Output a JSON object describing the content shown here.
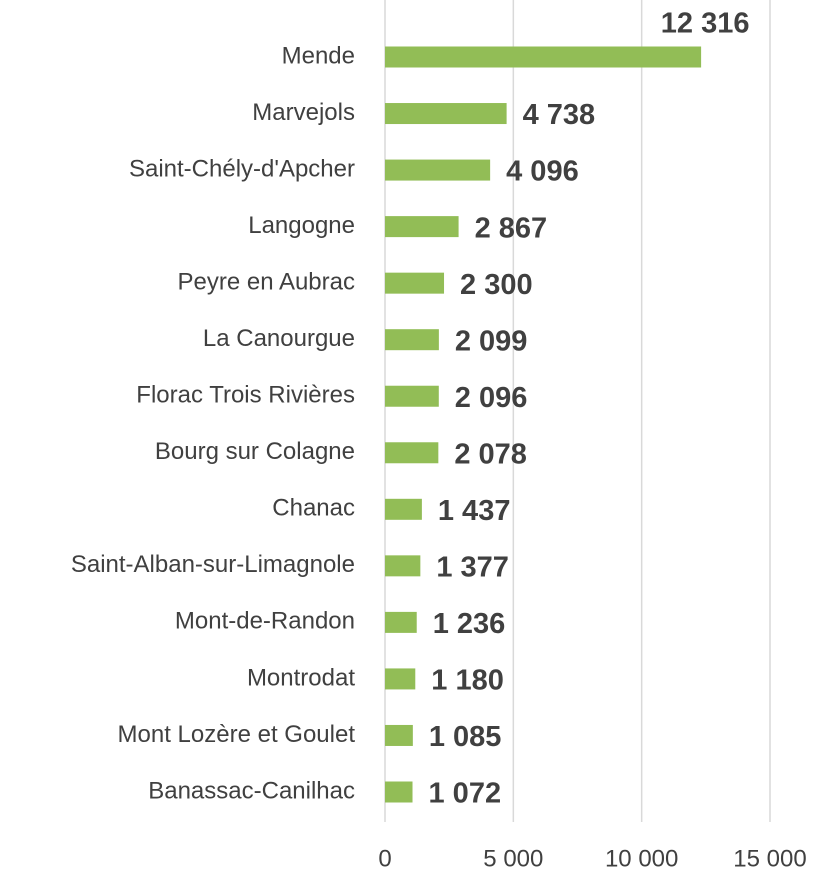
{
  "chart_data": {
    "type": "bar",
    "orientation": "horizontal",
    "categories": [
      "Mende",
      "Marvejols",
      "Saint-Chély-d'Apcher",
      "Langogne",
      "Peyre en Aubrac",
      "La Canourgue",
      "Florac Trois Rivières",
      "Bourg sur Colagne",
      "Chanac",
      "Saint-Alban-sur-Limagnole",
      "Mont-de-Randon",
      "Montrodat",
      "Mont Lozère et Goulet",
      "Banassac-Canilhac"
    ],
    "values": [
      12316,
      4738,
      4096,
      2867,
      2300,
      2099,
      2096,
      2078,
      1437,
      1377,
      1236,
      1180,
      1085,
      1072
    ],
    "value_labels": [
      "12 316",
      "4 738",
      "4 096",
      "2 867",
      "2 300",
      "2 099",
      "2 096",
      "2 078",
      "1 437",
      "1 377",
      "1 236",
      "1 180",
      "1 085",
      "1 072"
    ],
    "color": "#92bd56",
    "xlim": [
      0,
      15000
    ],
    "xticks": [
      0,
      {
        "value": 5000,
        "label": "5 000"
      },
      {
        "value": 10000,
        "label": "10 000"
      },
      {
        "value": 15000,
        "label": "15 000"
      }
    ],
    "grid": true
  }
}
